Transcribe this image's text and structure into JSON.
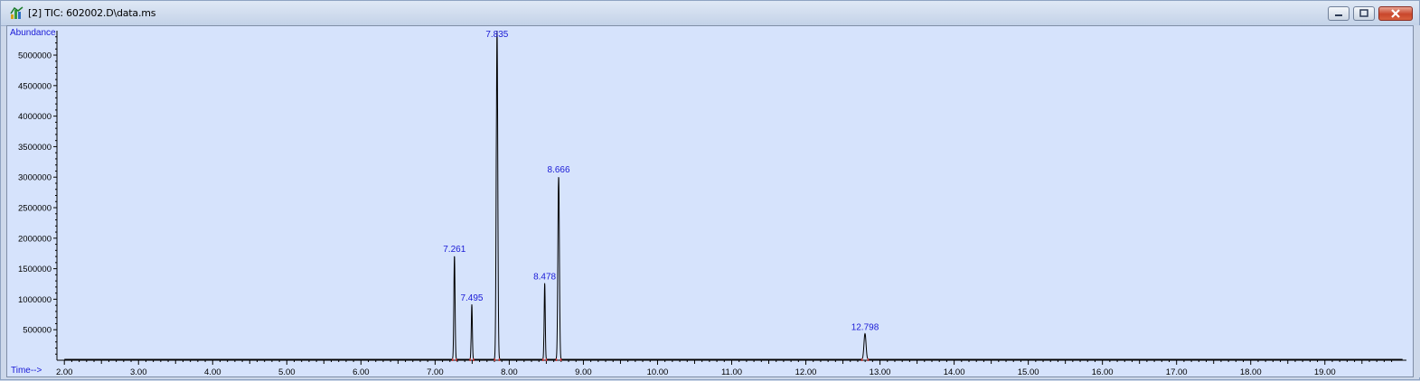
{
  "window": {
    "title": "[2] TIC: 602002.D\\data.ms",
    "icons": [
      "chromatogram-app-icon",
      "minimize-icon",
      "maximize-icon",
      "close-icon"
    ]
  },
  "colors": {
    "plot_bg": "#d6e3fc",
    "trace": "#000000",
    "labels": "#1a1ad6",
    "baseline_marks": "#d83a3a"
  },
  "chart_data": {
    "type": "line",
    "ylabel": "Abundance",
    "xlabel": "Time-->",
    "xlim": [
      1.9,
      20.1
    ],
    "ylim": [
      0,
      5400000
    ],
    "x_ticks": [
      "2.00",
      "3.00",
      "4.00",
      "5.00",
      "6.00",
      "7.00",
      "8.00",
      "9.00",
      "10.00",
      "11.00",
      "12.00",
      "13.00",
      "14.00",
      "15.00",
      "16.00",
      "17.00",
      "18.00",
      "19.00"
    ],
    "y_ticks": [
      "500000",
      "1000000",
      "1500000",
      "2000000",
      "2500000",
      "3000000",
      "3500000",
      "4000000",
      "4500000",
      "5000000"
    ],
    "peaks": [
      {
        "rt": 7.261,
        "label": "7.261",
        "abundance": 1700000,
        "width": 0.018
      },
      {
        "rt": 7.495,
        "label": "7.495",
        "abundance": 900000,
        "width": 0.016
      },
      {
        "rt": 7.835,
        "label": "7.835",
        "abundance": 5400000,
        "width": 0.022
      },
      {
        "rt": 8.478,
        "label": "8.478",
        "abundance": 1250000,
        "width": 0.016
      },
      {
        "rt": 8.666,
        "label": "8.666",
        "abundance": 3000000,
        "width": 0.022
      },
      {
        "rt": 12.798,
        "label": "12.798",
        "abundance": 420000,
        "width": 0.03
      }
    ]
  }
}
